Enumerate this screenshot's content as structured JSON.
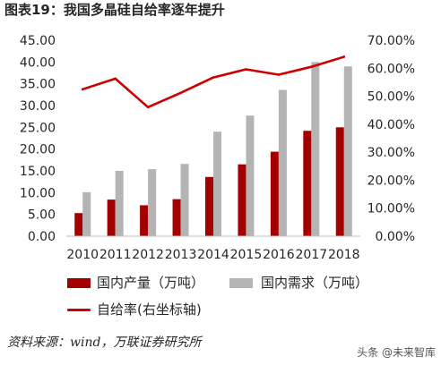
{
  "chart_data": {
    "type": "bar",
    "title": "图表19：我国多晶硅自给率逐年提升",
    "categories": [
      "2010",
      "2011",
      "2012",
      "2013",
      "2014",
      "2015",
      "2016",
      "2017",
      "2018"
    ],
    "series": [
      {
        "name": "国内产量（万吨）",
        "type": "bar",
        "y_axis": "left",
        "values": [
          5.3,
          8.4,
          7.1,
          8.5,
          13.6,
          16.5,
          19.4,
          24.2,
          25.0
        ]
      },
      {
        "name": "国内需求（万吨）",
        "type": "bar",
        "y_axis": "left",
        "values": [
          10.1,
          15.0,
          15.4,
          16.6,
          24.0,
          27.7,
          33.6,
          40.0,
          39.0
        ]
      },
      {
        "name": "自给率(右坐标轴)",
        "type": "line",
        "y_axis": "right",
        "values": [
          52.5,
          56.3,
          46.1,
          51.2,
          56.7,
          59.6,
          57.7,
          60.5,
          64.1
        ]
      }
    ],
    "y_left": {
      "range": [
        0,
        45
      ],
      "tick_labels": [
        "0.00",
        "5.00",
        "10.00",
        "15.00",
        "20.00",
        "25.00",
        "30.00",
        "35.00",
        "40.00",
        "45.00"
      ]
    },
    "y_right": {
      "range": [
        0,
        70
      ],
      "tick_labels": [
        "0.00%",
        "10.00%",
        "20.00%",
        "30.00%",
        "40.00%",
        "50.00%",
        "60.00%",
        "70.00%"
      ]
    },
    "grid": false,
    "legend_placement": "bottom"
  },
  "footer": {
    "source": "资料来源：wind，万联证券研究所",
    "watermark": "头条 @未来智库"
  },
  "colors": {
    "production": "#a30000",
    "demand": "#b4b4b4",
    "self_sufficiency": "#cc0000",
    "axis_line": "#bfbfbf",
    "text": "#262626"
  }
}
